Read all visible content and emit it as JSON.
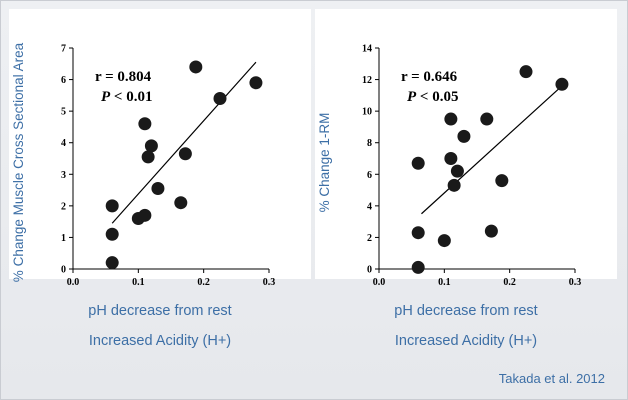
{
  "colors": {
    "axis_label": "#3d6fa6",
    "marker": "#1a1a1a",
    "background": "#e9ebee"
  },
  "citation": "Takada et al. 2012",
  "chart_data": [
    {
      "type": "scatter",
      "ylabel": "% Change Muscle Cross Sectional Area",
      "xlabel": "pH decrease from rest",
      "xlabel2": "Increased Acidity (H+)",
      "xlim": [
        0.0,
        0.3
      ],
      "ylim": [
        0,
        7
      ],
      "xticks": [
        "0.0",
        "0.1",
        "0.2",
        "0.3"
      ],
      "yticks": [
        "0",
        "1",
        "2",
        "3",
        "4",
        "5",
        "6",
        "7"
      ],
      "stats": {
        "r": "r = 0.804",
        "p_italic": "P",
        "p_rest": " < 0.01"
      },
      "points": [
        {
          "x": 0.06,
          "y": 0.2
        },
        {
          "x": 0.06,
          "y": 1.1
        },
        {
          "x": 0.06,
          "y": 2.0
        },
        {
          "x": 0.1,
          "y": 1.6
        },
        {
          "x": 0.11,
          "y": 1.7
        },
        {
          "x": 0.11,
          "y": 4.6
        },
        {
          "x": 0.115,
          "y": 3.55
        },
        {
          "x": 0.12,
          "y": 3.9
        },
        {
          "x": 0.13,
          "y": 2.55
        },
        {
          "x": 0.165,
          "y": 2.1
        },
        {
          "x": 0.172,
          "y": 3.65
        },
        {
          "x": 0.188,
          "y": 6.4
        },
        {
          "x": 0.225,
          "y": 5.4
        },
        {
          "x": 0.28,
          "y": 5.9
        }
      ],
      "trendline": {
        "x": [
          0.06,
          0.28
        ],
        "y": [
          1.45,
          6.55
        ]
      },
      "grid": false,
      "legend": "none"
    },
    {
      "type": "scatter",
      "ylabel": "% Change 1-RM",
      "xlabel": "pH decrease from rest",
      "xlabel2": "Increased Acidity (H+)",
      "xlim": [
        0.0,
        0.3
      ],
      "ylim": [
        0,
        14
      ],
      "xticks": [
        "0.0",
        "0.1",
        "0.2",
        "0.3"
      ],
      "yticks": [
        "0",
        "2",
        "4",
        "6",
        "8",
        "10",
        "12",
        "14"
      ],
      "stats": {
        "r": "r = 0.646",
        "p_italic": "P",
        "p_rest": " < 0.05"
      },
      "points": [
        {
          "x": 0.06,
          "y": 0.1
        },
        {
          "x": 0.06,
          "y": 2.3
        },
        {
          "x": 0.06,
          "y": 6.7
        },
        {
          "x": 0.1,
          "y": 1.8
        },
        {
          "x": 0.11,
          "y": 9.5
        },
        {
          "x": 0.11,
          "y": 7.0
        },
        {
          "x": 0.115,
          "y": 5.3
        },
        {
          "x": 0.12,
          "y": 6.2
        },
        {
          "x": 0.13,
          "y": 8.4
        },
        {
          "x": 0.165,
          "y": 9.5
        },
        {
          "x": 0.172,
          "y": 2.4
        },
        {
          "x": 0.188,
          "y": 5.6
        },
        {
          "x": 0.225,
          "y": 12.5
        },
        {
          "x": 0.28,
          "y": 11.7
        }
      ],
      "trendline": {
        "x": [
          0.065,
          0.28
        ],
        "y": [
          3.5,
          11.6
        ]
      },
      "grid": false,
      "legend": "none"
    }
  ]
}
